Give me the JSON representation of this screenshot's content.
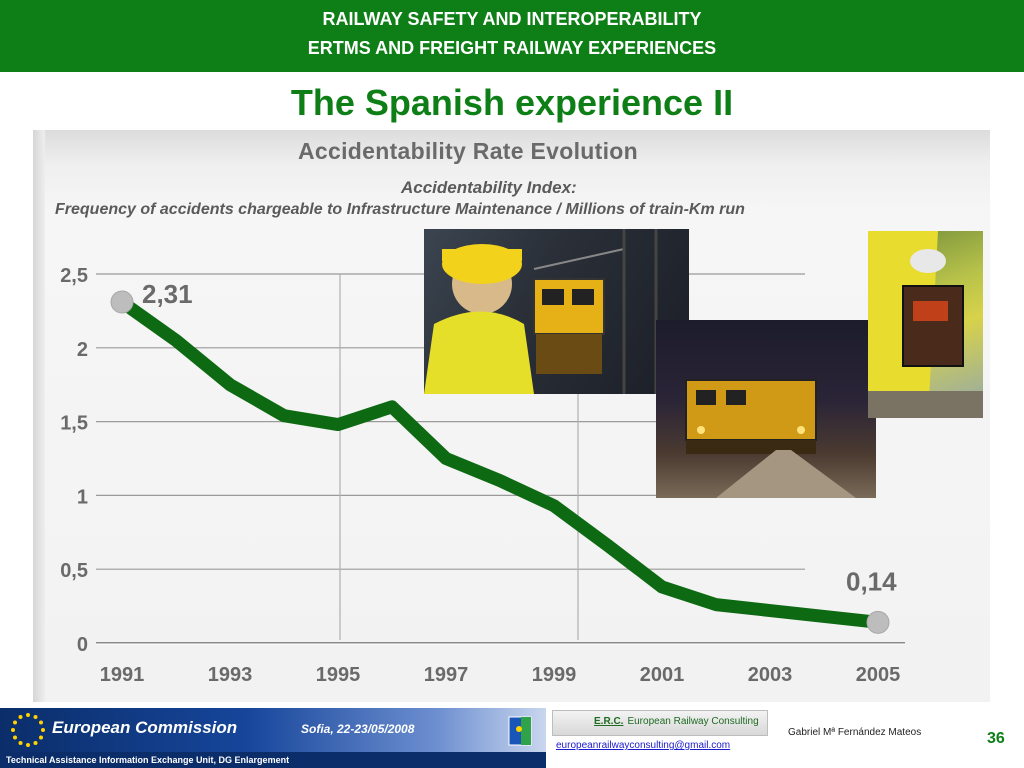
{
  "header": {
    "line1": "RAILWAY SAFETY AND INTEROPERABILITY",
    "line2": "ERTMS AND FREIGHT RAILWAY EXPERIENCES"
  },
  "slide_title": "The Spanish experience II",
  "chart_data": {
    "type": "line",
    "title": "Accidentability Rate Evolution",
    "subtitle1": "Accidentability Index:",
    "subtitle2": "Frequency of accidents chargeable to Infrastructure Maintenance / Millions of train-Km run",
    "x_tick_labels": [
      "1991",
      "1993",
      "1995",
      "1997",
      "1999",
      "2001",
      "2003",
      "2005"
    ],
    "y_tick_labels": [
      "0",
      "0,5",
      "1",
      "1,5",
      "2",
      "2,5"
    ],
    "y_ticks": [
      0,
      0.5,
      1,
      1.5,
      2,
      2.5
    ],
    "xlim": [
      1991,
      2005
    ],
    "ylim": [
      0,
      2.5
    ],
    "grid": true,
    "series": [
      {
        "x": [
          1991,
          1992,
          1993,
          1994,
          1995,
          1996,
          1997,
          1998,
          1999,
          2000,
          2001,
          2002,
          2003,
          2004,
          2005
        ],
        "y": [
          2.31,
          2.05,
          1.75,
          1.54,
          1.48,
          1.6,
          1.25,
          1.1,
          0.93,
          0.66,
          0.38,
          0.26,
          0.22,
          0.18,
          0.14
        ],
        "color": "#0e6a12"
      }
    ],
    "annotations": [
      {
        "text": "2,31",
        "x": 1991,
        "y": 2.31
      },
      {
        "text": "0,14",
        "x": 2005,
        "y": 0.14
      }
    ]
  },
  "footer": {
    "org": "European Commission",
    "unit": "Technical Assistance Information Exchange Unit, DG Enlargement",
    "event": "Sofia, 22-23/05/2008",
    "erc_abbr": "E.R.C.",
    "erc_name": "European Railway Consulting",
    "email": "europeanrailwayconsulting@gmail.com",
    "author": "Gabriel Mª Fernández Mateos",
    "page": "36"
  },
  "colors": {
    "brand_green": "#0e7f16",
    "line": "#0e6a12",
    "eu_blue": "#0b2e6a"
  }
}
